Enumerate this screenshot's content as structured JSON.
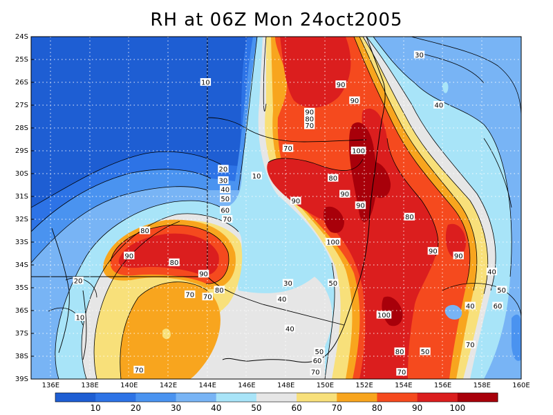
{
  "title": "RH at 06Z Mon 24oct2005",
  "lat_ticks": [
    "24S",
    "25S",
    "26S",
    "27S",
    "28S",
    "29S",
    "30S",
    "31S",
    "32S",
    "33S",
    "34S",
    "35S",
    "36S",
    "37S",
    "38S",
    "39S"
  ],
  "lon_ticks": [
    "136E",
    "138E",
    "140E",
    "142E",
    "144E",
    "146E",
    "148E",
    "150E",
    "152E",
    "154E",
    "156E",
    "158E",
    "160E"
  ],
  "colorbar": {
    "colors": [
      "#1e5ed3",
      "#2d73e6",
      "#4a93f0",
      "#78b4f5",
      "#a8e4f8",
      "#e6e6e6",
      "#f8e07a",
      "#f8a51e",
      "#f54a1e",
      "#db1e1e",
      "#a8000a"
    ],
    "labels": [
      "10",
      "20",
      "30",
      "40",
      "50",
      "60",
      "70",
      "80",
      "90",
      "100"
    ]
  },
  "contour_labels": [
    {
      "t": "10",
      "lon": 146.5,
      "lat": -30.1
    },
    {
      "t": "10",
      "lon": 143.9,
      "lat": -26.0
    },
    {
      "t": "10",
      "lon": 137.5,
      "lat": -36.3
    },
    {
      "t": "20",
      "lon": 144.8,
      "lat": -29.8
    },
    {
      "t": "20",
      "lon": 137.4,
      "lat": -34.7
    },
    {
      "t": "30",
      "lon": 144.8,
      "lat": -30.3
    },
    {
      "t": "30",
      "lon": 148.1,
      "lat": -34.8
    },
    {
      "t": "30",
      "lon": 154.8,
      "lat": -24.8
    },
    {
      "t": "40",
      "lon": 144.9,
      "lat": -30.7
    },
    {
      "t": "40",
      "lon": 147.8,
      "lat": -35.5
    },
    {
      "t": "40",
      "lon": 148.2,
      "lat": -36.8
    },
    {
      "t": "40",
      "lon": 155.8,
      "lat": -27.0
    },
    {
      "t": "40",
      "lon": 158.5,
      "lat": -34.3
    },
    {
      "t": "40",
      "lon": 157.4,
      "lat": -35.8
    },
    {
      "t": "50",
      "lon": 144.9,
      "lat": -31.1
    },
    {
      "t": "50",
      "lon": 150.4,
      "lat": -34.8
    },
    {
      "t": "50",
      "lon": 149.7,
      "lat": -37.8
    },
    {
      "t": "50",
      "lon": 159.0,
      "lat": -35.1
    },
    {
      "t": "50",
      "lon": 155.1,
      "lat": -37.8
    },
    {
      "t": "60",
      "lon": 144.9,
      "lat": -31.6
    },
    {
      "t": "60",
      "lon": 149.6,
      "lat": -38.2
    },
    {
      "t": "60",
      "lon": 158.8,
      "lat": -35.8
    },
    {
      "t": "70",
      "lon": 145.0,
      "lat": -32.0
    },
    {
      "t": "70",
      "lon": 148.1,
      "lat": -28.9
    },
    {
      "t": "70",
      "lon": 149.2,
      "lat": -27.9
    },
    {
      "t": "70",
      "lon": 143.1,
      "lat": -35.3
    },
    {
      "t": "70",
      "lon": 144.0,
      "lat": -35.4
    },
    {
      "t": "70",
      "lon": 140.5,
      "lat": -38.6
    },
    {
      "t": "70",
      "lon": 149.5,
      "lat": -38.7
    },
    {
      "t": "70",
      "lon": 153.9,
      "lat": -38.7
    },
    {
      "t": "70",
      "lon": 157.4,
      "lat": -37.5
    },
    {
      "t": "80",
      "lon": 140.8,
      "lat": -32.5
    },
    {
      "t": "80",
      "lon": 142.3,
      "lat": -33.9
    },
    {
      "t": "80",
      "lon": 144.6,
      "lat": -35.1
    },
    {
      "t": "80",
      "lon": 149.2,
      "lat": -27.6
    },
    {
      "t": "80",
      "lon": 150.4,
      "lat": -30.2
    },
    {
      "t": "80",
      "lon": 154.3,
      "lat": -31.9
    },
    {
      "t": "80",
      "lon": 153.8,
      "lat": -37.8
    },
    {
      "t": "90",
      "lon": 140.0,
      "lat": -33.6
    },
    {
      "t": "90",
      "lon": 143.8,
      "lat": -34.4
    },
    {
      "t": "90",
      "lon": 149.2,
      "lat": -27.3
    },
    {
      "t": "90",
      "lon": 150.8,
      "lat": -26.1
    },
    {
      "t": "90",
      "lon": 151.5,
      "lat": -26.8
    },
    {
      "t": "90",
      "lon": 148.5,
      "lat": -31.2
    },
    {
      "t": "90",
      "lon": 151.0,
      "lat": -30.9
    },
    {
      "t": "90",
      "lon": 151.8,
      "lat": -31.4
    },
    {
      "t": "90",
      "lon": 155.5,
      "lat": -33.4
    },
    {
      "t": "90",
      "lon": 156.8,
      "lat": -33.6
    },
    {
      "t": "100",
      "lon": 151.7,
      "lat": -29.0
    },
    {
      "t": "100",
      "lon": 150.4,
      "lat": -33.0
    },
    {
      "t": "100",
      "lon": 153.0,
      "lat": -36.2
    }
  ]
}
